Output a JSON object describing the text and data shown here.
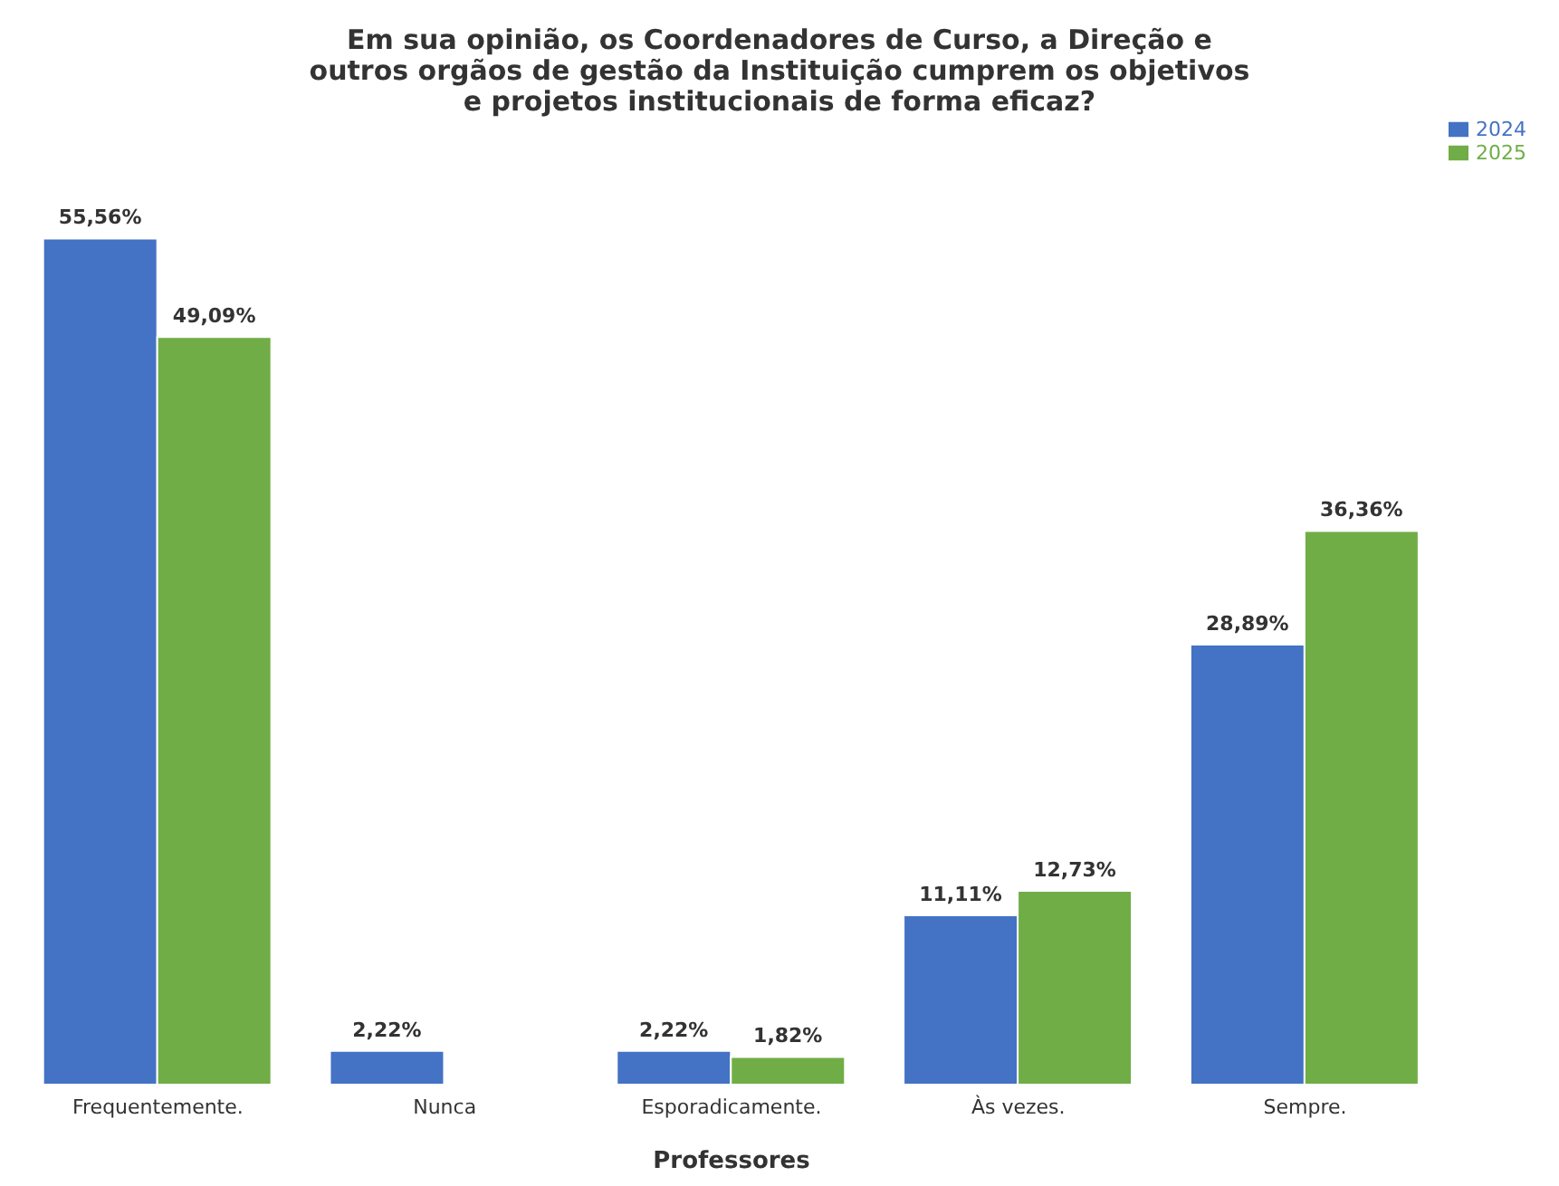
{
  "chart_data": {
    "type": "bar",
    "title": "Em sua opinião, os Coordenadores de Curso, a Direção e\noutros orgãos de gestão da Instituição cumprem os objetivos\ne projetos institucionais de forma eficaz?",
    "xlabel": "Professores",
    "categories": [
      "Frequentemente.",
      "Nunca",
      "Esporadicamente.",
      "Às vezes.",
      "Sempre."
    ],
    "series": [
      {
        "name": "2024",
        "color": "#4472c4",
        "values": [
          55.56,
          2.22,
          2.22,
          11.11,
          28.89
        ],
        "value_labels": [
          "55,56%",
          "2,22%",
          "2,22%",
          "11,11%",
          "28,89%"
        ]
      },
      {
        "name": "2025",
        "color": "#70ad47",
        "values": [
          49.09,
          null,
          1.82,
          12.73,
          36.36
        ],
        "value_labels": [
          "49,09%",
          null,
          "1,82%",
          "12,73%",
          "36,36%"
        ]
      }
    ],
    "legend": "top right",
    "grid": false
  }
}
